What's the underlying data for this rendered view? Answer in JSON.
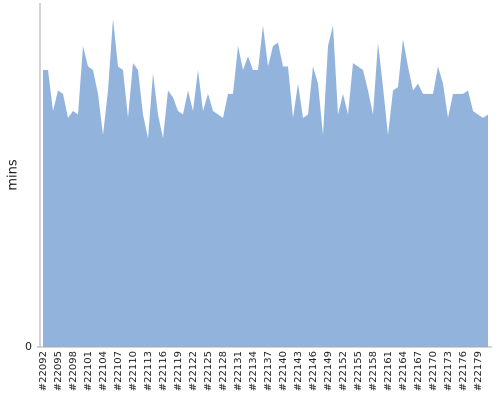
{
  "chart_data": {
    "type": "area",
    "ylabel": "mins",
    "color": "#92b3dc",
    "ylim": [
      0,
      100
    ],
    "yticks": [
      0
    ],
    "categories": [
      "#22092",
      null,
      null,
      "#22095",
      null,
      null,
      "#22098",
      null,
      null,
      "#22101",
      null,
      null,
      "#22104",
      null,
      null,
      "#22107",
      null,
      null,
      "#22110",
      null,
      null,
      "#22113",
      null,
      null,
      "#22116",
      null,
      null,
      "#22119",
      null,
      null,
      "#22122",
      null,
      null,
      "#22125",
      null,
      null,
      "#22128",
      null,
      null,
      "#22131",
      null,
      null,
      "#22134",
      null,
      null,
      "#22137",
      null,
      null,
      "#22140",
      null,
      null,
      "#22143",
      null,
      null,
      "#22146",
      null,
      null,
      "#22149",
      null,
      null,
      "#22152",
      null,
      null,
      "#22155",
      null,
      null,
      "#22158",
      null,
      null,
      "#22161",
      null,
      null,
      "#22164",
      null,
      null,
      "#22167",
      null,
      null,
      "#22170",
      null,
      null,
      "#22173",
      null,
      null,
      "#22176",
      null,
      null,
      "#22179",
      null,
      null
    ],
    "values": [
      81,
      81,
      69,
      75,
      74,
      67,
      69,
      68,
      88,
      82,
      81,
      74,
      62,
      75,
      96,
      82,
      81,
      67,
      83,
      81,
      68,
      61,
      80,
      68,
      61,
      75,
      73,
      69,
      68,
      75,
      69,
      81,
      69,
      74,
      69,
      68,
      67,
      74,
      74,
      88,
      81,
      85,
      81,
      81,
      94,
      82,
      88,
      89,
      82,
      82,
      67,
      77,
      67,
      68,
      82,
      77,
      62,
      88,
      94,
      68,
      74,
      68,
      83,
      82,
      81,
      75,
      68,
      89,
      76,
      62,
      75,
      76,
      90,
      82,
      75,
      77,
      74,
      74,
      74,
      82,
      77,
      67,
      74,
      74,
      74,
      75,
      69,
      68,
      67,
      68
    ]
  }
}
